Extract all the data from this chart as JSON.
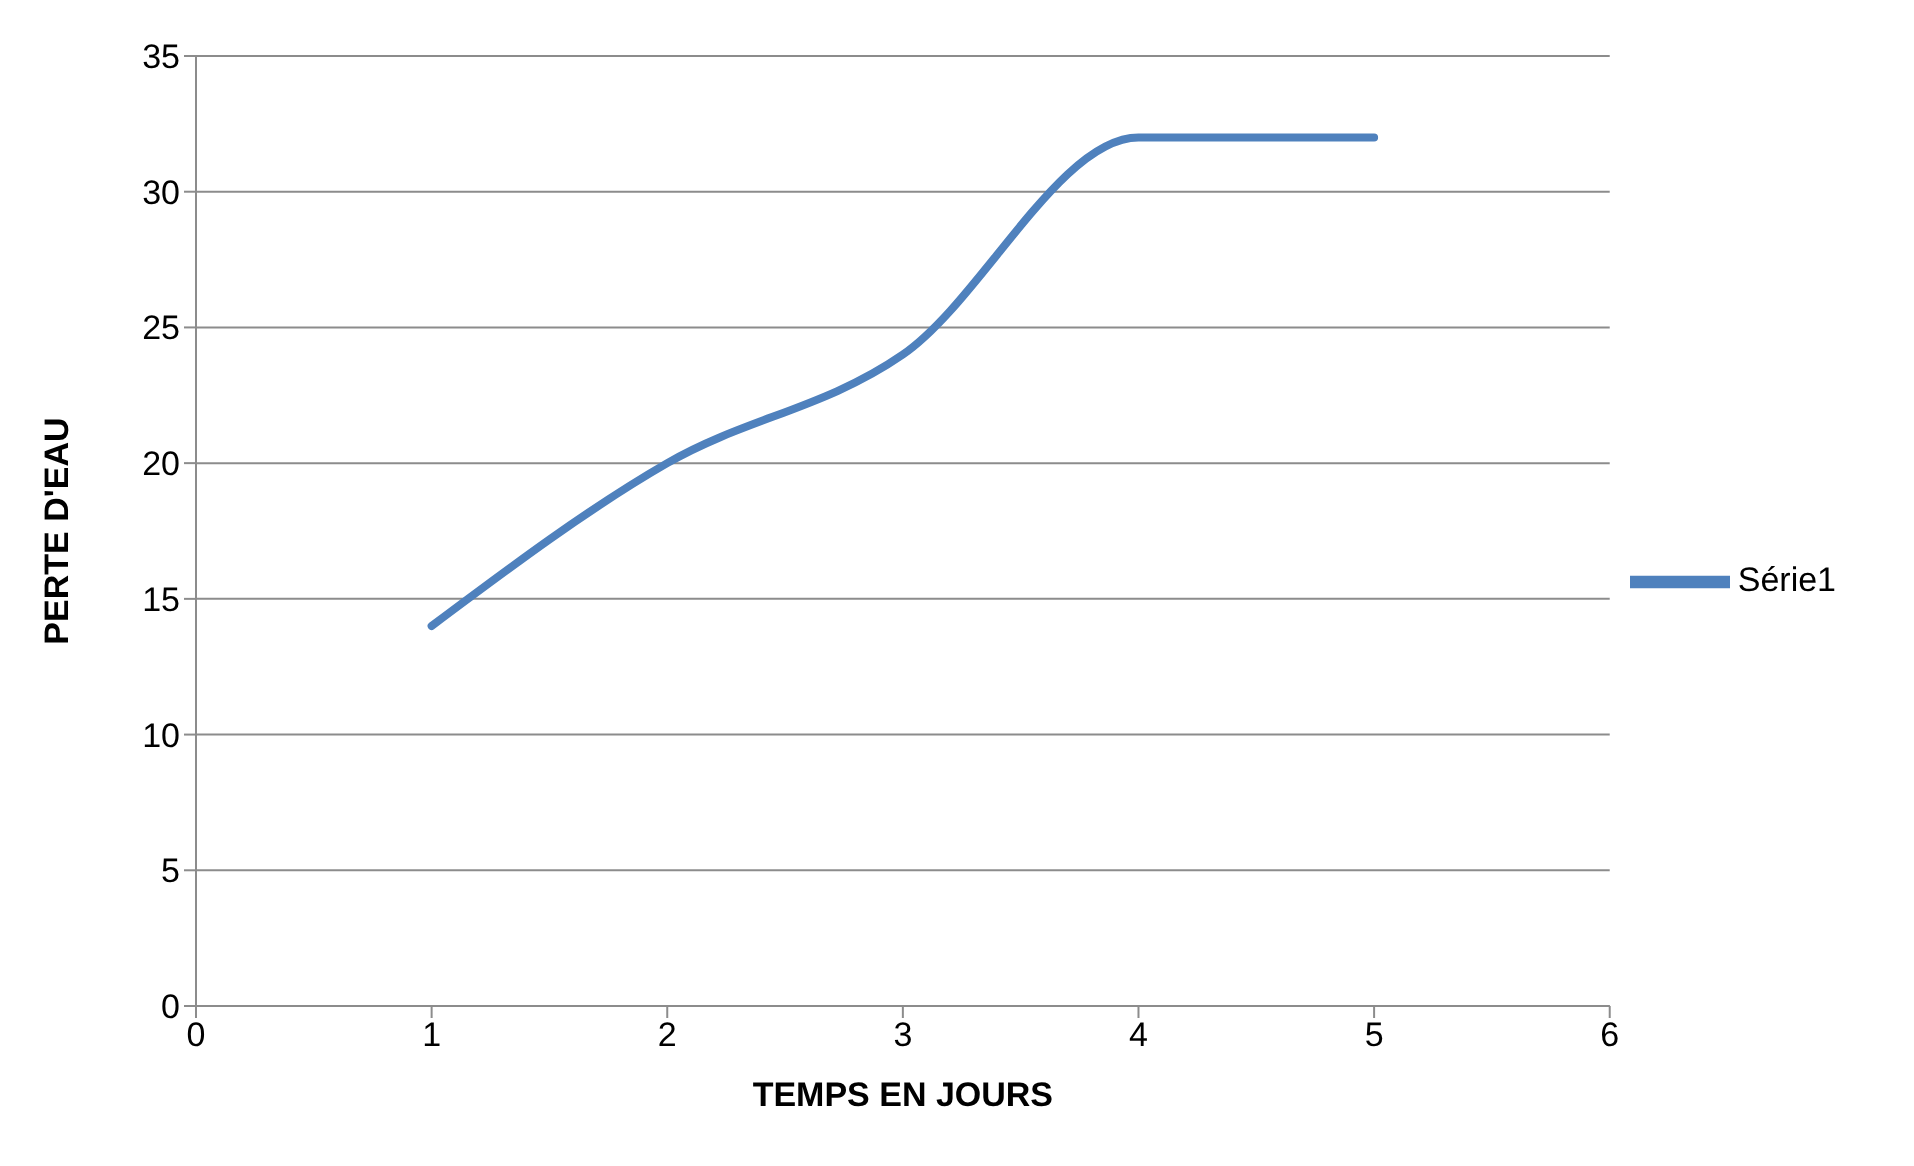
{
  "chart_data": {
    "type": "line",
    "xlabel": "TEMPS EN JOURS",
    "ylabel": "PERTE D'EAU",
    "x": [
      1,
      2,
      3,
      4,
      5
    ],
    "series": [
      {
        "name": "Série1",
        "color": "#4f81bd",
        "values": [
          14,
          20,
          24,
          32,
          32
        ]
      }
    ],
    "xlim": [
      0,
      6
    ],
    "xticks": [
      0,
      1,
      2,
      3,
      4,
      5,
      6
    ],
    "ylim": [
      0,
      35
    ],
    "yticks": [
      0,
      5,
      10,
      15,
      20,
      25,
      30,
      35
    ],
    "grid": "y",
    "legend": "right",
    "marker": "none",
    "line_style": "solid"
  }
}
